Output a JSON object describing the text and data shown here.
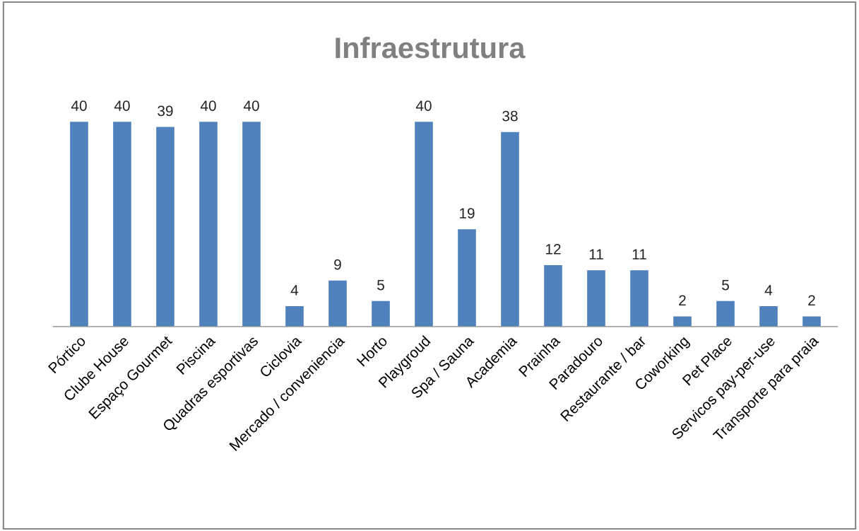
{
  "chart_data": {
    "type": "bar",
    "title": "Infraestrutura",
    "categories": [
      "Pórtico",
      "Clube House",
      "Espaço Gourmet",
      "Piscina",
      "Quadras esportivas",
      "Ciclovia",
      "Mercado / conveniencia",
      "Horto",
      "Playgroud",
      "Spa / Sauna",
      "Academia",
      "Prainha",
      "Paradouro",
      "Restaurante / bar",
      "Coworking",
      "Pet Place",
      "Servicos pay-per-use",
      "Transporte para praia"
    ],
    "values": [
      40,
      40,
      39,
      40,
      40,
      4,
      9,
      5,
      40,
      19,
      38,
      12,
      11,
      11,
      2,
      5,
      4,
      2
    ],
    "color": "#4f81bd",
    "data_labels": true
  }
}
